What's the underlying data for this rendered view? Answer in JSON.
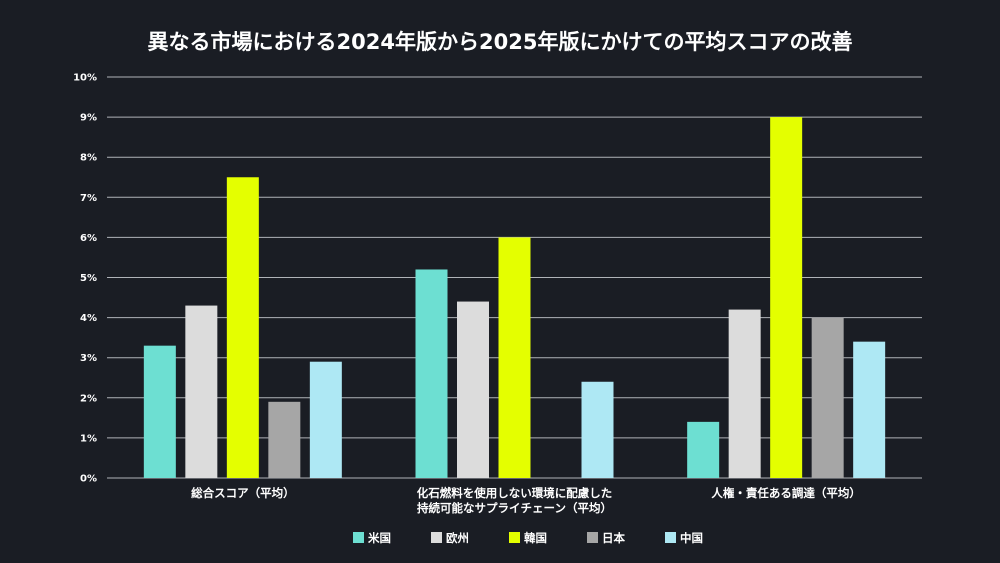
{
  "chart_data": {
    "type": "bar",
    "title": "異なる市場における2024年版から2025年版にかけての平均スコアの改善",
    "categories": [
      [
        "総合スコア（平均）"
      ],
      [
        "化石燃料を使用しない環境に配慮した",
        "持続可能なサプライチェーン（平均）"
      ],
      [
        "人権・責任ある調達（平均）"
      ]
    ],
    "series": [
      {
        "name": "米国",
        "color": "#6ddfd2",
        "values": [
          3.3,
          5.2,
          1.4
        ]
      },
      {
        "name": "欧州",
        "color": "#dcdcdc",
        "values": [
          4.3,
          4.4,
          4.2
        ]
      },
      {
        "name": "韓国",
        "color": "#e4ff00",
        "values": [
          7.5,
          6.0,
          9.0
        ]
      },
      {
        "name": "日本",
        "color": "#a6a6a6",
        "values": [
          1.9,
          null,
          4.0
        ]
      },
      {
        "name": "中国",
        "color": "#aee8f4",
        "values": [
          2.9,
          2.4,
          3.4
        ]
      }
    ],
    "ylim": [
      0,
      10
    ],
    "yticks": [
      "0%",
      "1%",
      "2%",
      "3%",
      "4%",
      "5%",
      "6%",
      "7%",
      "8%",
      "9%",
      "10%"
    ],
    "grid": true,
    "legend_position": "bottom"
  }
}
